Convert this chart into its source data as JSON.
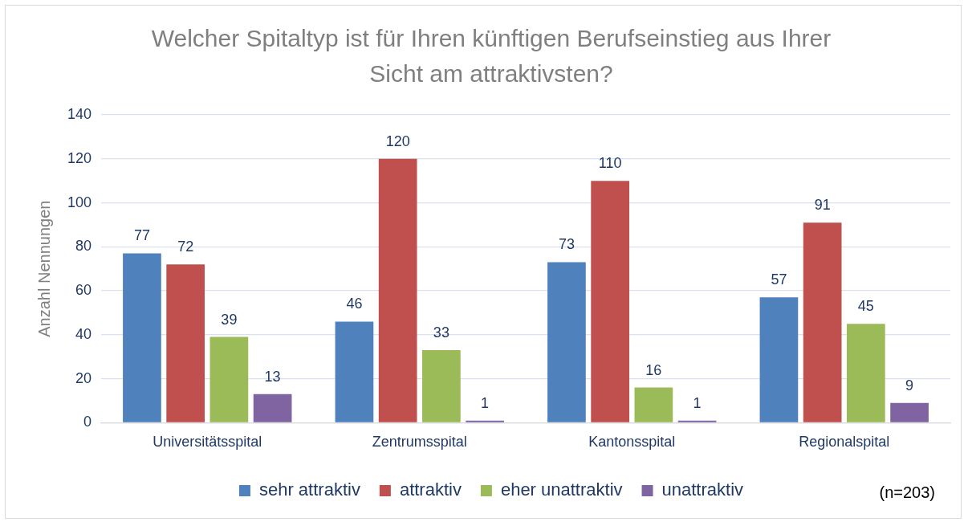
{
  "chart_data": {
    "type": "bar",
    "title": "Welcher Spitaltyp ist für Ihren künftigen Berufseinstieg aus Ihrer Sicht am attraktivsten?",
    "ylabel": "Anzahl Nennungen",
    "categories": [
      "Universitätsspital",
      "Zentrumsspital",
      "Kantonsspital",
      "Regionalspital"
    ],
    "series": [
      {
        "name": "sehr attraktiv",
        "color": "#4f81bd",
        "values": [
          77,
          46,
          73,
          57
        ]
      },
      {
        "name": "attraktiv",
        "color": "#c0504d",
        "values": [
          72,
          120,
          110,
          91
        ]
      },
      {
        "name": "eher unattraktiv",
        "color": "#9bbb59",
        "values": [
          39,
          33,
          16,
          45
        ]
      },
      {
        "name": "unattraktiv",
        "color": "#8064a2",
        "values": [
          13,
          1,
          1,
          9
        ]
      }
    ],
    "ylim": [
      0,
      140
    ],
    "yticks": [
      0,
      20,
      40,
      60,
      80,
      100,
      120,
      140
    ],
    "grid": "y",
    "legend": "bottom",
    "data_labels": true,
    "annotations": [
      "(n=203)"
    ]
  }
}
